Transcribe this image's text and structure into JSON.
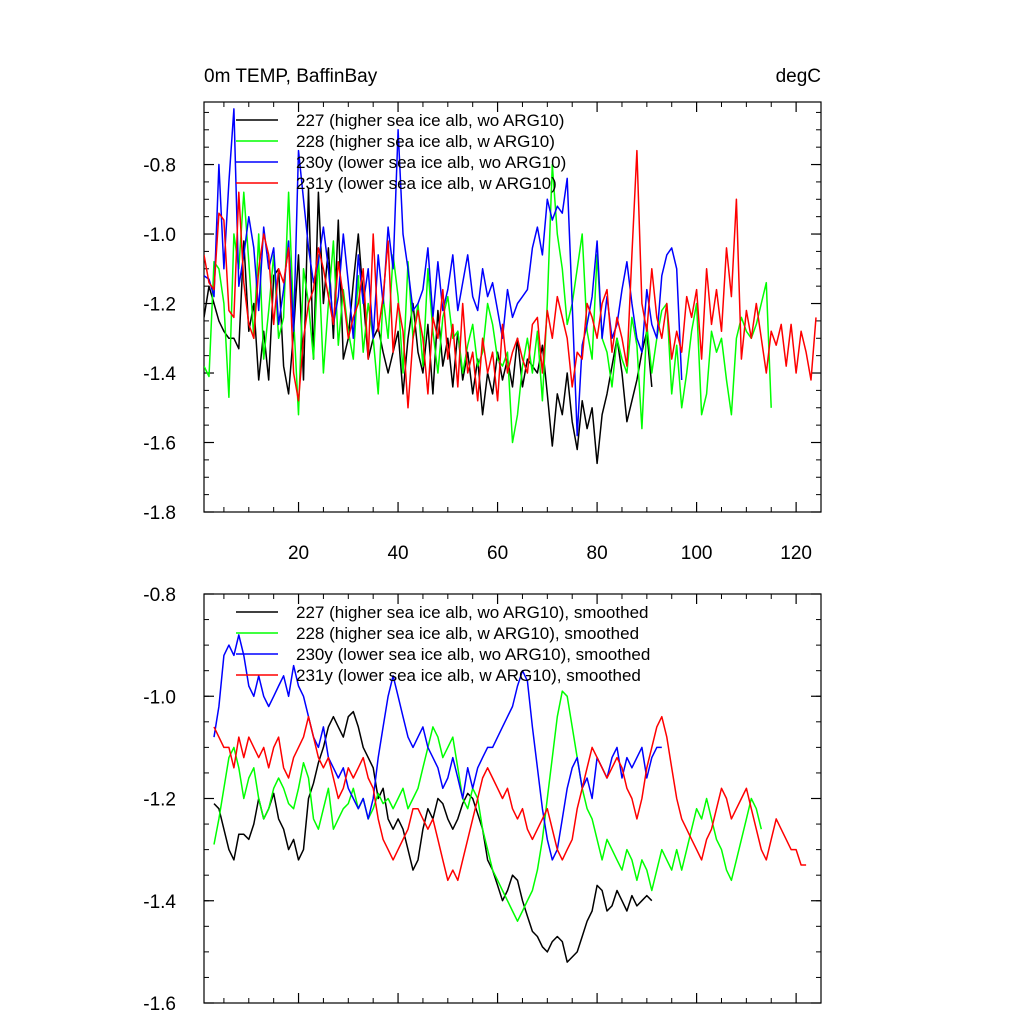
{
  "chart_data": [
    {
      "type": "line",
      "title": "0m TEMP, BaffinBay",
      "units": "degC",
      "xlabel": "",
      "ylabel": "",
      "xlim": [
        1,
        125
      ],
      "ylim": [
        -1.8,
        -0.62
      ],
      "xticks": [
        20,
        40,
        60,
        80,
        100,
        120
      ],
      "yticks": [
        -1.8,
        -1.6,
        -1.4,
        -1.2,
        -1.0,
        -0.8
      ],
      "ytick_labels": [
        "-1.8",
        "-1.6",
        "-1.4",
        "-1.2",
        "-1.0",
        "-0.8"
      ],
      "legend_position": "top-left",
      "series": [
        {
          "name": "227 (higher sea ice alb, wo ARG10)",
          "color": "#000000",
          "x_start": 1,
          "values": [
            -1.24,
            -1.15,
            -1.2,
            -1.25,
            -1.28,
            -1.3,
            -1.3,
            -1.33,
            -1.02,
            -1.28,
            -1.2,
            -1.42,
            -1.28,
            -1.42,
            -1.12,
            -1.1,
            -1.38,
            -1.46,
            -1.28,
            -1.06,
            -1.42,
            -0.87,
            -1.36,
            -0.88,
            -1.2,
            -1.04,
            -1.3,
            -0.96,
            -1.36,
            -1.3,
            -1.14,
            -1.0,
            -1.18,
            -1.36,
            -1.3,
            -1.27,
            -1.34,
            -1.4,
            -1.34,
            -1.28,
            -1.46,
            -1.3,
            -1.2,
            -1.34,
            -1.4,
            -1.26,
            -1.46,
            -1.22,
            -1.38,
            -1.3,
            -1.44,
            -1.28,
            -1.42,
            -1.34,
            -1.46,
            -1.36,
            -1.52,
            -1.4,
            -1.46,
            -1.34,
            -1.42,
            -1.36,
            -1.44,
            -1.3,
            -1.44,
            -1.36,
            -1.38,
            -1.4,
            -1.32,
            -1.46,
            -1.61,
            -1.46,
            -1.52,
            -1.4,
            -1.54,
            -1.62,
            -1.48,
            -1.56,
            -1.5,
            -1.66,
            -1.52,
            -1.46,
            -1.38,
            -1.3,
            -1.4,
            -1.54,
            -1.48,
            -1.42,
            -1.34,
            -1.28,
            -1.44
          ]
        },
        {
          "name": "228 (higher sea ice alb, w ARG10)",
          "color": "#00ff00",
          "x_start": 1,
          "values": [
            -1.38,
            -1.41,
            -1.08,
            -1.1,
            -1.2,
            -1.47,
            -1.0,
            -1.1,
            -0.88,
            -1.08,
            -1.3,
            -1.0,
            -1.36,
            -1.22,
            -1.06,
            -1.3,
            -1.24,
            -0.88,
            -1.24,
            -1.52,
            -1.1,
            -1.2,
            -1.36,
            -1.06,
            -1.4,
            -1.2,
            -1.02,
            -1.32,
            -1.16,
            -1.28,
            -1.36,
            -1.12,
            -1.34,
            -1.2,
            -1.3,
            -1.46,
            -1.18,
            -1.3,
            -1.06,
            -1.18,
            -1.4,
            -1.08,
            -1.3,
            -1.2,
            -1.38,
            -1.1,
            -1.28,
            -1.4,
            -1.24,
            -1.18,
            -1.3,
            -1.28,
            -1.4,
            -1.32,
            -1.26,
            -1.38,
            -1.34,
            -1.2,
            -1.26,
            -1.36,
            -1.38,
            -1.34,
            -1.6,
            -1.52,
            -1.38,
            -1.3,
            -1.4,
            -1.28,
            -1.48,
            -1.2,
            -0.8,
            -1.0,
            -1.1,
            -1.26,
            -1.2,
            -1.1,
            -1.0,
            -1.28,
            -1.36,
            -1.06,
            -1.3,
            -1.34,
            -1.44,
            -1.3,
            -1.36,
            -1.4,
            -1.24,
            -1.32,
            -1.56,
            -1.26,
            -1.4,
            -1.3,
            -1.22,
            -1.2,
            -1.46,
            -1.32,
            -1.5,
            -1.4,
            -1.28,
            -1.2,
            -1.52,
            -1.46,
            -1.28,
            -1.34,
            -1.3,
            -1.42,
            -1.52,
            -1.3,
            -1.24,
            -1.28,
            -1.3,
            -1.26,
            -1.2,
            -1.14,
            -1.5
          ]
        },
        {
          "name": "230y (lower sea ice alb, wo ARG10)",
          "color": "#0000ff",
          "x_start": 1,
          "values": [
            -1.12,
            -1.13,
            -1.18,
            -0.8,
            -1.1,
            -0.85,
            -0.64,
            -1.15,
            -1.06,
            -0.95,
            -1.04,
            -1.22,
            -0.98,
            -1.1,
            -1.04,
            -1.26,
            -1.16,
            -1.02,
            -1.28,
            -0.76,
            -0.9,
            -1.04,
            -1.14,
            -1.08,
            -0.98,
            -1.1,
            -1.26,
            -1.18,
            -1.0,
            -1.14,
            -1.3,
            -1.06,
            -1.2,
            -1.1,
            -1.3,
            -1.06,
            -1.2,
            -0.98,
            -1.1,
            -0.7,
            -1.0,
            -1.1,
            -1.22,
            -1.2,
            -1.16,
            -1.04,
            -1.24,
            -1.08,
            -1.22,
            -1.16,
            -1.06,
            -1.22,
            -1.14,
            -1.06,
            -1.18,
            -1.22,
            -1.1,
            -1.18,
            -1.14,
            -1.22,
            -1.3,
            -1.16,
            -1.24,
            -1.2,
            -1.18,
            -1.16,
            -1.04,
            -0.98,
            -1.06,
            -0.9,
            -0.96,
            -0.92,
            -0.94,
            -0.84,
            -1.2,
            -1.58,
            -1.32,
            -1.26,
            -1.18,
            -1.02,
            -1.3,
            -1.18,
            -1.3,
            -1.26,
            -1.16,
            -1.08,
            -1.2,
            -1.3,
            -1.34,
            -1.16,
            -1.26,
            -1.3,
            -1.12,
            -1.06,
            -1.04,
            -1.1,
            -1.42
          ]
        },
        {
          "name": "231y (lower sea ice alb, w ARG10)",
          "color": "#ff0000",
          "x_start": 1,
          "values": [
            -1.06,
            -1.14,
            -1.16,
            -0.94,
            -0.96,
            -1.22,
            -1.24,
            -0.88,
            -1.14,
            -1.26,
            -1.3,
            -1.1,
            -1.0,
            -1.06,
            -1.26,
            -1.1,
            -1.14,
            -1.04,
            -1.4,
            -1.48,
            -1.3,
            -1.2,
            -1.16,
            -1.04,
            -1.1,
            -1.18,
            -1.26,
            -1.08,
            -1.18,
            -1.3,
            -1.24,
            -1.2,
            -1.1,
            -1.36,
            -1.0,
            -1.28,
            -1.18,
            -1.02,
            -1.34,
            -1.2,
            -1.28,
            -1.5,
            -1.3,
            -1.22,
            -1.3,
            -1.46,
            -1.24,
            -1.3,
            -1.16,
            -1.36,
            -1.26,
            -1.44,
            -1.2,
            -1.4,
            -1.34,
            -1.48,
            -1.3,
            -1.4,
            -1.34,
            -1.48,
            -1.26,
            -1.4,
            -1.34,
            -1.3,
            -1.36,
            -1.4,
            -1.26,
            -1.24,
            -1.4,
            -1.22,
            -1.3,
            -1.18,
            -1.24,
            -1.3,
            -1.44,
            -1.34,
            -1.36,
            -1.2,
            -1.24,
            -1.3,
            -1.2,
            -1.16,
            -1.34,
            -1.24,
            -1.3,
            -1.38,
            -1.06,
            -0.76,
            -1.2,
            -1.28,
            -1.1,
            -1.24,
            -1.3,
            -1.2,
            -1.36,
            -1.28,
            -1.34,
            -1.18,
            -1.24,
            -1.16,
            -1.36,
            -1.1,
            -1.26,
            -1.16,
            -1.28,
            -1.04,
            -1.18,
            -0.9,
            -1.36,
            -1.22,
            -1.3,
            -1.2,
            -1.3,
            -1.4,
            -1.28,
            -1.32,
            -1.26,
            -1.38,
            -1.26,
            -1.4,
            -1.28,
            -1.34,
            -1.42,
            -1.24
          ]
        }
      ]
    },
    {
      "type": "line",
      "title": "",
      "units": "",
      "xlabel": "",
      "ylabel": "",
      "xlim": [
        1,
        125
      ],
      "ylim": [
        -1.6,
        -0.8
      ],
      "xticks": [
        20,
        40,
        60,
        80,
        100,
        120
      ],
      "yticks": [
        -1.6,
        -1.4,
        -1.2,
        -1.0,
        -0.8
      ],
      "ytick_labels": [
        "-1.6",
        "-1.4",
        "-1.2",
        "-1.0",
        "-0.8"
      ],
      "legend_position": "top-left",
      "series": [
        {
          "name": "227 (higher sea ice alb, wo ARG10), smoothed",
          "color": "#000000",
          "x_start": 3,
          "values": [
            -1.21,
            -1.22,
            -1.26,
            -1.3,
            -1.32,
            -1.27,
            -1.27,
            -1.28,
            -1.25,
            -1.2,
            -1.24,
            -1.22,
            -1.19,
            -1.24,
            -1.26,
            -1.3,
            -1.28,
            -1.32,
            -1.3,
            -1.2,
            -1.17,
            -1.13,
            -1.1,
            -1.06,
            -1.04,
            -1.06,
            -1.08,
            -1.04,
            -1.03,
            -1.06,
            -1.1,
            -1.12,
            -1.14,
            -1.2,
            -1.18,
            -1.24,
            -1.26,
            -1.24,
            -1.26,
            -1.3,
            -1.34,
            -1.32,
            -1.26,
            -1.22,
            -1.24,
            -1.2,
            -1.21,
            -1.24,
            -1.26,
            -1.24,
            -1.21,
            -1.19,
            -1.2,
            -1.23,
            -1.26,
            -1.32,
            -1.34,
            -1.37,
            -1.4,
            -1.38,
            -1.35,
            -1.36,
            -1.4,
            -1.43,
            -1.46,
            -1.47,
            -1.49,
            -1.5,
            -1.48,
            -1.47,
            -1.48,
            -1.52,
            -1.51,
            -1.5,
            -1.47,
            -1.44,
            -1.42,
            -1.37,
            -1.38,
            -1.42,
            -1.41,
            -1.38,
            -1.4,
            -1.42,
            -1.39,
            -1.41,
            -1.4,
            -1.39,
            -1.4
          ]
        },
        {
          "name": "228 (higher sea ice alb, w ARG10), smoothed",
          "color": "#00ff00",
          "x_start": 3,
          "values": [
            -1.29,
            -1.24,
            -1.18,
            -1.12,
            -1.1,
            -1.14,
            -1.2,
            -1.16,
            -1.14,
            -1.2,
            -1.24,
            -1.22,
            -1.18,
            -1.16,
            -1.18,
            -1.21,
            -1.22,
            -1.18,
            -1.13,
            -1.16,
            -1.24,
            -1.26,
            -1.22,
            -1.18,
            -1.26,
            -1.24,
            -1.22,
            -1.21,
            -1.18,
            -1.22,
            -1.2,
            -1.24,
            -1.22,
            -1.19,
            -1.21,
            -1.2,
            -1.22,
            -1.2,
            -1.18,
            -1.22,
            -1.2,
            -1.18,
            -1.14,
            -1.1,
            -1.06,
            -1.08,
            -1.12,
            -1.1,
            -1.08,
            -1.14,
            -1.2,
            -1.22,
            -1.18,
            -1.2,
            -1.26,
            -1.3,
            -1.34,
            -1.36,
            -1.38,
            -1.4,
            -1.42,
            -1.44,
            -1.42,
            -1.4,
            -1.38,
            -1.34,
            -1.28,
            -1.2,
            -1.12,
            -1.04,
            -0.99,
            -1.0,
            -1.06,
            -1.12,
            -1.18,
            -1.22,
            -1.24,
            -1.28,
            -1.32,
            -1.28,
            -1.3,
            -1.32,
            -1.34,
            -1.3,
            -1.32,
            -1.36,
            -1.32,
            -1.34,
            -1.38,
            -1.34,
            -1.3,
            -1.32,
            -1.34,
            -1.3,
            -1.34,
            -1.3,
            -1.26,
            -1.22,
            -1.24,
            -1.2,
            -1.24,
            -1.28,
            -1.3,
            -1.34,
            -1.36,
            -1.32,
            -1.28,
            -1.24,
            -1.2,
            -1.22,
            -1.26
          ]
        },
        {
          "name": "230y (lower sea ice alb, wo ARG10), smoothed",
          "color": "#0000ff",
          "x_start": 3,
          "values": [
            -1.08,
            -1.02,
            -0.92,
            -0.9,
            -0.92,
            -0.88,
            -0.92,
            -0.98,
            -1.0,
            -0.96,
            -1.0,
            -1.02,
            -1.0,
            -0.98,
            -0.96,
            -1.0,
            -0.94,
            -0.98,
            -1.0,
            -1.04,
            -1.08,
            -1.1,
            -1.06,
            -1.12,
            -1.14,
            -1.16,
            -1.14,
            -1.18,
            -1.2,
            -1.22,
            -1.2,
            -1.24,
            -1.2,
            -1.12,
            -1.06,
            -1.0,
            -0.96,
            -1.0,
            -1.04,
            -1.08,
            -1.1,
            -1.08,
            -1.06,
            -1.1,
            -1.12,
            -1.14,
            -1.18,
            -1.16,
            -1.12,
            -1.16,
            -1.2,
            -1.14,
            -1.18,
            -1.14,
            -1.12,
            -1.1,
            -1.1,
            -1.08,
            -1.06,
            -1.04,
            -1.02,
            -0.98,
            -0.95,
            -0.97,
            -1.06,
            -1.14,
            -1.22,
            -1.28,
            -1.32,
            -1.3,
            -1.24,
            -1.18,
            -1.14,
            -1.12,
            -1.18,
            -1.16,
            -1.2,
            -1.12,
            -1.14,
            -1.16,
            -1.12,
            -1.1,
            -1.16,
            -1.12,
            -1.14,
            -1.12,
            -1.1,
            -1.16,
            -1.12,
            -1.1,
            -1.1
          ]
        },
        {
          "name": "231y (lower sea ice alb, w ARG10), smoothed",
          "color": "#ff0000",
          "x_start": 3,
          "values": [
            -1.06,
            -1.08,
            -1.1,
            -1.1,
            -1.14,
            -1.08,
            -1.12,
            -1.08,
            -1.1,
            -1.12,
            -1.1,
            -1.14,
            -1.1,
            -1.08,
            -1.14,
            -1.16,
            -1.12,
            -1.1,
            -1.08,
            -1.04,
            -1.08,
            -1.12,
            -1.14,
            -1.12,
            -1.16,
            -1.2,
            -1.18,
            -1.14,
            -1.16,
            -1.14,
            -1.12,
            -1.16,
            -1.18,
            -1.24,
            -1.28,
            -1.3,
            -1.32,
            -1.3,
            -1.28,
            -1.26,
            -1.22,
            -1.22,
            -1.24,
            -1.26,
            -1.24,
            -1.28,
            -1.32,
            -1.36,
            -1.34,
            -1.36,
            -1.32,
            -1.28,
            -1.24,
            -1.2,
            -1.16,
            -1.14,
            -1.16,
            -1.18,
            -1.2,
            -1.18,
            -1.22,
            -1.24,
            -1.22,
            -1.26,
            -1.28,
            -1.26,
            -1.24,
            -1.22,
            -1.26,
            -1.3,
            -1.32,
            -1.3,
            -1.28,
            -1.22,
            -1.18,
            -1.14,
            -1.1,
            -1.12,
            -1.14,
            -1.16,
            -1.14,
            -1.12,
            -1.14,
            -1.18,
            -1.2,
            -1.24,
            -1.2,
            -1.14,
            -1.1,
            -1.06,
            -1.04,
            -1.08,
            -1.14,
            -1.2,
            -1.24,
            -1.26,
            -1.28,
            -1.3,
            -1.32,
            -1.28,
            -1.26,
            -1.22,
            -1.18,
            -1.2,
            -1.24,
            -1.22,
            -1.2,
            -1.18,
            -1.22,
            -1.26,
            -1.3,
            -1.32,
            -1.28,
            -1.24,
            -1.26,
            -1.28,
            -1.3,
            -1.3,
            -1.33,
            -1.33
          ]
        }
      ]
    }
  ]
}
